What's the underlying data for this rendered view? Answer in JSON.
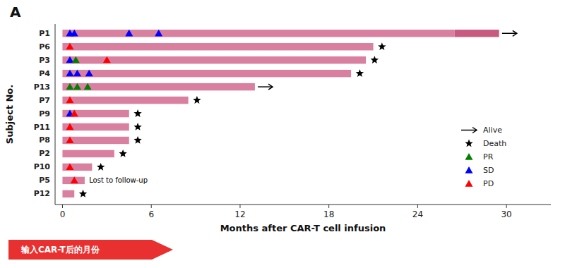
{
  "chart_data": {
    "type": "bar",
    "orientation": "horizontal",
    "stacked": true,
    "title": "A",
    "xlabel": "Months after CAR-T cell infusion",
    "ylabel": "Subject No.",
    "annotation": "输入CAR-T后的月份",
    "categories": [
      "P1",
      "P6",
      "P3",
      "P4",
      "P13",
      "P7",
      "P9",
      "P11",
      "P8",
      "P2",
      "P10",
      "P5",
      "P12"
    ],
    "series": [
      {
        "color": "#d97fa0",
        "values": [
          26.5,
          21.0,
          20.5,
          19.5,
          13.0,
          8.5,
          4.5,
          4.5,
          4.5,
          3.5,
          2.0,
          1.5,
          0.8
        ]
      },
      {
        "color": "#c85a80",
        "values": [
          3.0,
          null,
          null,
          null,
          null,
          null,
          null,
          null,
          null,
          null,
          null,
          null,
          null
        ]
      }
    ],
    "outcomes": [
      "Alive",
      "Death",
      "Death",
      "Death",
      "Alive",
      "Death",
      "Death",
      "Death",
      "Death",
      "Death",
      "Death",
      "Lost to follow-up",
      "Death"
    ],
    "markers": [
      [
        {
          "x": 0.5,
          "type": "SD"
        },
        {
          "x": 0.8,
          "type": "SD"
        },
        {
          "x": 4.5,
          "type": "SD"
        },
        {
          "x": 6.5,
          "type": "SD"
        }
      ],
      [
        {
          "x": 0.5,
          "type": "PD"
        }
      ],
      [
        {
          "x": 0.5,
          "type": "SD"
        },
        {
          "x": 0.9,
          "type": "PR"
        },
        {
          "x": 3.0,
          "type": "PD"
        }
      ],
      [
        {
          "x": 0.5,
          "type": "SD"
        },
        {
          "x": 1.0,
          "type": "SD"
        },
        {
          "x": 1.8,
          "type": "SD"
        }
      ],
      [
        {
          "x": 0.5,
          "type": "PR"
        },
        {
          "x": 1.0,
          "type": "PR"
        },
        {
          "x": 1.7,
          "type": "PR"
        }
      ],
      [
        {
          "x": 0.5,
          "type": "PD"
        }
      ],
      [
        {
          "x": 0.5,
          "type": "SD"
        },
        {
          "x": 0.8,
          "type": "PD"
        }
      ],
      [
        {
          "x": 0.5,
          "type": "PD"
        }
      ],
      [
        {
          "x": 0.5,
          "type": "PD"
        }
      ],
      [],
      [
        {
          "x": 0.5,
          "type": "PD"
        }
      ],
      [
        {
          "x": 0.8,
          "type": "PD"
        }
      ],
      []
    ],
    "legend_items": [
      {
        "name": "Alive",
        "marker": "arrow",
        "color": "black"
      },
      {
        "name": "Death",
        "marker": "star",
        "color": "black"
      },
      {
        "name": "PR",
        "marker": "triangle",
        "color": "green"
      },
      {
        "name": "SD",
        "marker": "triangle",
        "color": "blue"
      },
      {
        "name": "PD",
        "marker": "triangle",
        "color": "red"
      }
    ],
    "legend": "lower right",
    "xlim": [
      -0.5,
      33
    ],
    "xticks": [
      0,
      6,
      12,
      18,
      24,
      30
    ],
    "grid": false
  }
}
